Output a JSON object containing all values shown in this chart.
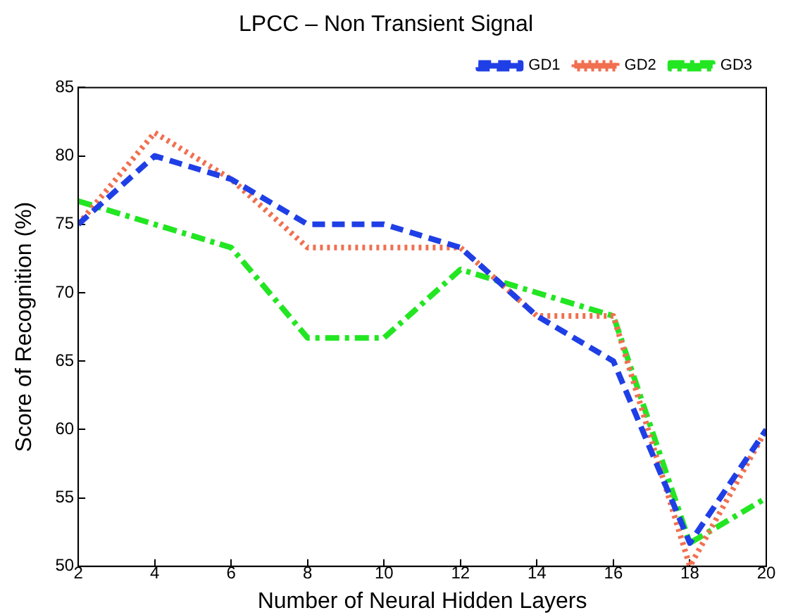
{
  "chart_data": {
    "type": "line",
    "title": "LPCC – Non Transient Signal",
    "xlabel": "Number of Neural Hidden Layers",
    "ylabel": "Score of Recognition (%)",
    "x": [
      2,
      4,
      6,
      8,
      10,
      12,
      14,
      16,
      18,
      20
    ],
    "series": [
      {
        "name": "GD1",
        "color": "#1f3fe6",
        "line_style": "dashed",
        "values": [
          75,
          80,
          78.3,
          75,
          75,
          73.3,
          68.3,
          65,
          51.7,
          60
        ]
      },
      {
        "name": "GD2",
        "color": "#f07050",
        "line_style": "dotted",
        "values": [
          75,
          81.7,
          78.3,
          73.3,
          73.3,
          73.3,
          68.3,
          68.3,
          50,
          60
        ]
      },
      {
        "name": "GD3",
        "color": "#22e622",
        "line_style": "dashdot",
        "values": [
          76.7,
          75,
          73.3,
          66.7,
          66.7,
          71.7,
          70,
          68.3,
          51.7,
          55
        ]
      }
    ],
    "xlim": [
      2,
      20
    ],
    "xticks": [
      2,
      4,
      6,
      8,
      10,
      12,
      14,
      16,
      18,
      20
    ],
    "ylim": [
      50,
      85
    ],
    "yticks": [
      50,
      55,
      60,
      65,
      70,
      75,
      80,
      85
    ],
    "grid": false,
    "legend": "top right",
    "marker": "none"
  }
}
